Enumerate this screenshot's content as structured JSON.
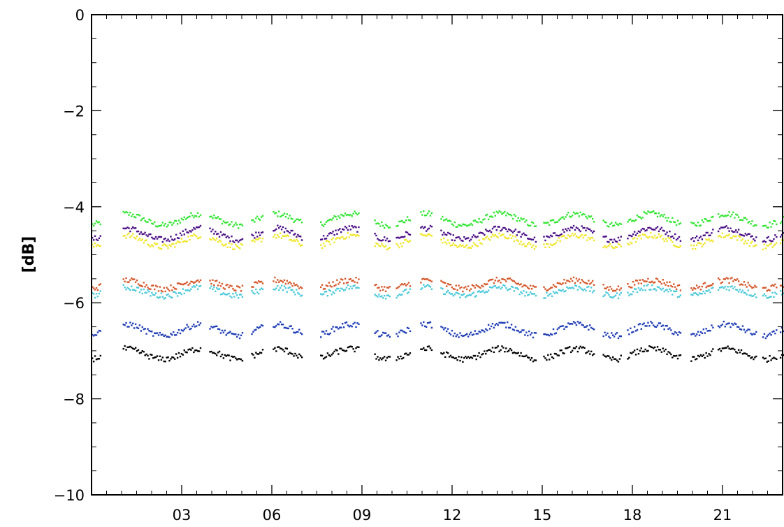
{
  "chart_data": {
    "type": "scatter",
    "title": "",
    "xlabel": "",
    "ylabel": "[dB]",
    "xlim": [
      0,
      23
    ],
    "ylim": [
      -10,
      0
    ],
    "grid": false,
    "legend": "none",
    "x_ticks": [
      3,
      6,
      9,
      12,
      15,
      18,
      21
    ],
    "x_tick_labels": [
      "03",
      "06",
      "09",
      "12",
      "15",
      "18",
      "21"
    ],
    "y_ticks": [
      -10,
      -8,
      -6,
      -4,
      -2,
      0
    ],
    "y_tick_labels": [
      "−10",
      "−8",
      "−6",
      "−4",
      "−2",
      "0"
    ],
    "series": [
      {
        "color": "#33e533",
        "base": -4.25,
        "amplitude": 0.2
      },
      {
        "color": "#4b0f85",
        "base": -4.55,
        "amplitude": 0.2
      },
      {
        "color": "#f0e62a",
        "base": -4.7,
        "amplitude": 0.2
      },
      {
        "color": "#d4572a",
        "base": -5.6,
        "amplitude": 0.15
      },
      {
        "color": "#4cc9d9",
        "base": -5.75,
        "amplitude": 0.15
      },
      {
        "color": "#1e3cb4",
        "base": -6.55,
        "amplitude": 0.2
      },
      {
        "color": "#000000",
        "base": -7.05,
        "amplitude": 0.18
      }
    ]
  }
}
